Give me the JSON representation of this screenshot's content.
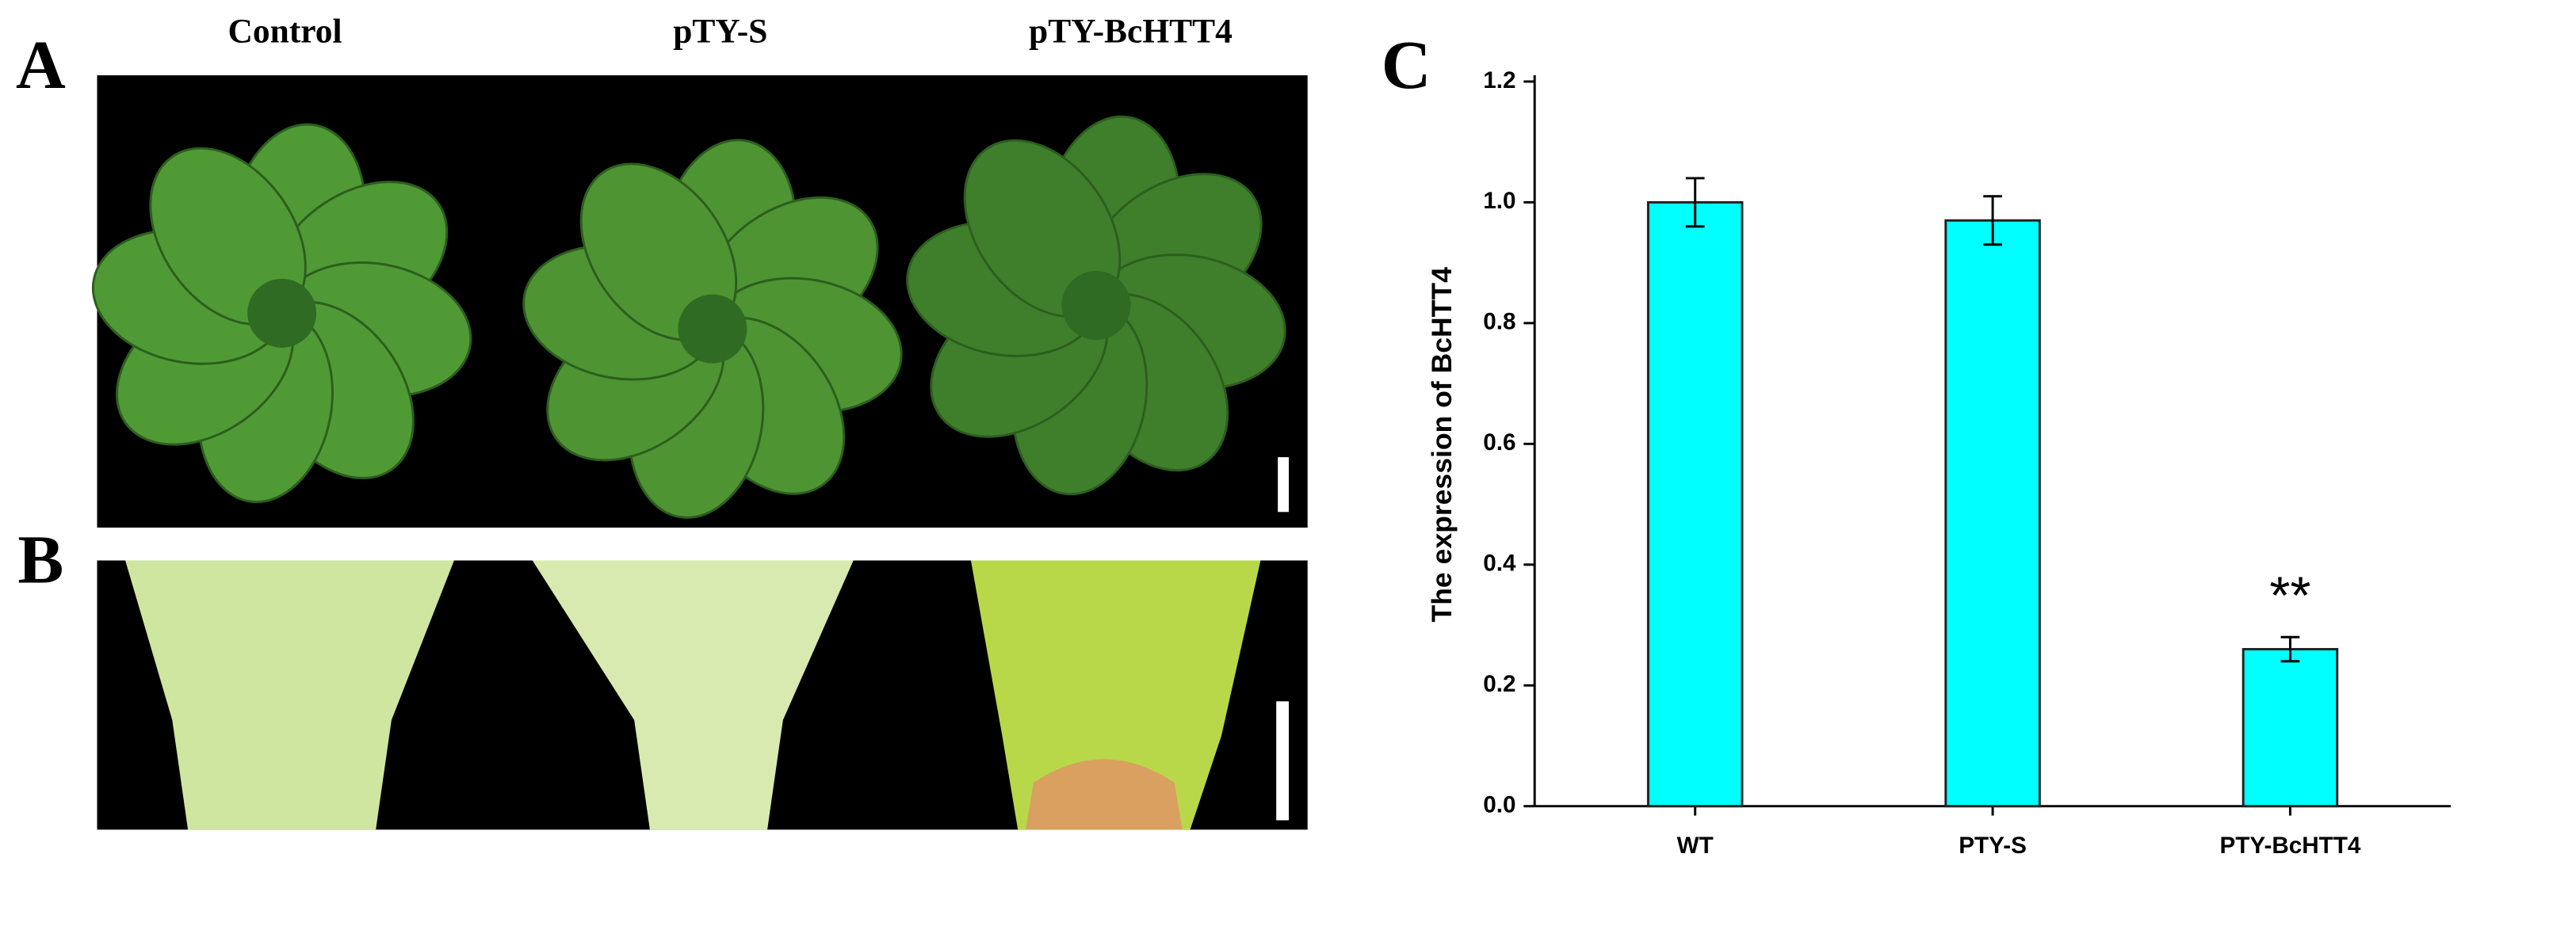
{
  "panel_labels": [
    "A",
    "B",
    "C"
  ],
  "photo_labels": [
    "Control",
    "pTY-S",
    "pTY-BcHTT4"
  ],
  "chart_data": {
    "type": "bar",
    "y_label": "The expression of BcHTT4",
    "categories": [
      "WT",
      "PTY-S",
      "PTY-BcHTT4"
    ],
    "values": [
      1.0,
      0.97,
      0.26
    ],
    "errors": [
      0.04,
      0.04,
      0.02
    ],
    "color": "#00ffff",
    "ylim": [
      0,
      1.2
    ],
    "yticks": [
      {
        "value": 0,
        "label": "0.0"
      },
      0.2,
      0.4,
      0.6,
      0.8,
      {
        "value": 1,
        "label": "1.0"
      },
      1.2
    ],
    "annotations": [
      {
        "text": "**",
        "category": "PTY-BcHTT4"
      }
    ]
  }
}
